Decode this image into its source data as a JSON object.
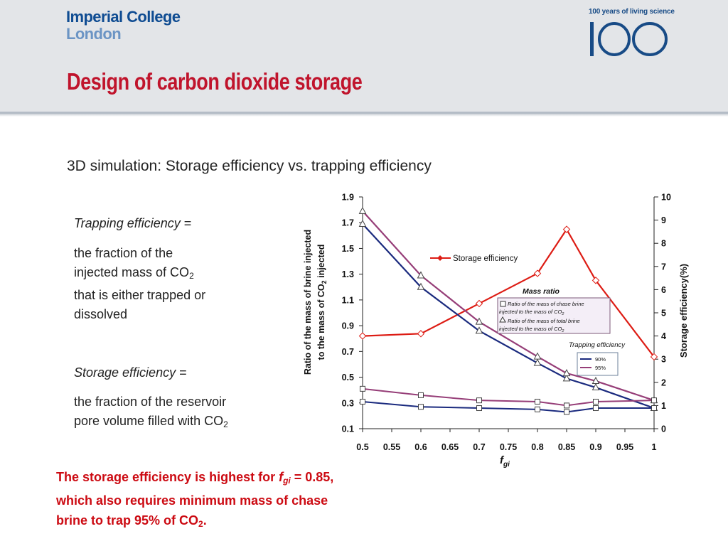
{
  "logo": {
    "line1": "Imperial College",
    "line2": "London"
  },
  "anniversary": {
    "caption": "100 years of living science",
    "mark": "100"
  },
  "slide_title": "Design of carbon dioxide storage",
  "subtitle": "3D simulation: Storage efficiency vs. trapping efficiency",
  "definitions": {
    "trapping_term": "Trapping efficiency",
    "equals": " =",
    "trapping_def_l1": "the fraction of the",
    "trapping_def_l2": "injected mass of CO",
    "sub2": "2",
    "trapping_def_l3": "that is either trapped or",
    "trapping_def_l4": "dissolved",
    "storage_term": "Storage efficiency",
    "storage_def_l1": "the fraction of the reservoir",
    "storage_def_l2": "pore volume filled with CO"
  },
  "conclusion": {
    "l1_a": "The storage efficiency is highest for ",
    "l1_f": "f",
    "l1_sub": "gi",
    "l1_b": " = 0.85,",
    "l2": "which also requires minimum mass of chase",
    "l3_a": "brine to trap 95% of CO",
    "l3_sub": "2",
    "l3_b": "."
  },
  "chart_data": {
    "type": "line",
    "x": [
      0.5,
      0.6,
      0.7,
      0.8,
      0.85,
      0.9,
      1.0
    ],
    "xticks": [
      "0.5",
      "0.55",
      "0.6",
      "0.65",
      "0.7",
      "0.75",
      "0.8",
      "0.85",
      "0.9",
      "0.95",
      "1"
    ],
    "xlabel": "f",
    "xlabel_sub": "gi",
    "xlim": [
      0.5,
      1.0
    ],
    "ylabel_left_l1": "Ratio of the mass of brine injected",
    "ylabel_left_l2a": "to the mass of CO",
    "ylabel_left_l2b": " injected",
    "ylim_left": [
      0.1,
      1.9
    ],
    "yticks_left": [
      "0.1",
      "0.3",
      "0.5",
      "0.7",
      "0.9",
      "1.1",
      "1.3",
      "1.5",
      "1.7",
      "1.9"
    ],
    "ylabel_right": "Storage efficiency(%)",
    "ylim_right": [
      0,
      10
    ],
    "yticks_right": [
      "0",
      "1",
      "2",
      "3",
      "4",
      "5",
      "6",
      "7",
      "8",
      "9",
      "10"
    ],
    "series": [
      {
        "name": "Storage efficiency",
        "axis": "right",
        "marker": "diamond",
        "color": "#dd1c14",
        "values": [
          4.0,
          4.1,
          5.4,
          6.7,
          8.6,
          6.4,
          3.1
        ]
      },
      {
        "name": "90%",
        "group": "Ratio of the mass of total brine injected to the mass of CO2",
        "axis": "left",
        "marker": "triangle",
        "color": "#1a2a7e",
        "values": [
          1.69,
          1.2,
          0.86,
          0.61,
          0.49,
          0.42,
          0.26
        ]
      },
      {
        "name": "95%",
        "group": "Ratio of the mass of total brine injected to the mass of CO2",
        "axis": "left",
        "marker": "triangle",
        "color": "#963e78",
        "values": [
          1.79,
          1.29,
          0.93,
          0.66,
          0.53,
          0.47,
          0.32
        ]
      },
      {
        "name": "90%",
        "group": "Ratio of the mass of chase brine injected to the mass of CO2",
        "axis": "left",
        "marker": "square",
        "color": "#1a2a7e",
        "values": [
          0.31,
          0.27,
          0.26,
          0.25,
          0.23,
          0.26,
          0.26
        ]
      },
      {
        "name": "95%",
        "group": "Ratio of the mass of chase brine injected to the mass of CO2",
        "axis": "left",
        "marker": "square",
        "color": "#963e78",
        "values": [
          0.41,
          0.36,
          0.32,
          0.31,
          0.28,
          0.31,
          0.32
        ]
      }
    ],
    "legend_storage": "Storage efficiency",
    "legend_mass_title": "Mass ratio",
    "legend_chase_l1": "Ratio of the mass of chase brine",
    "legend_chase_l2": "injected to the mass of CO",
    "legend_total_l1": "Ratio of the mass of total brine",
    "legend_total_l2": "injected to the mass of CO",
    "legend_sub2": "2",
    "legend_trap_title": "Trapping efficiency",
    "legend_90": "90%",
    "legend_95": "95%"
  }
}
